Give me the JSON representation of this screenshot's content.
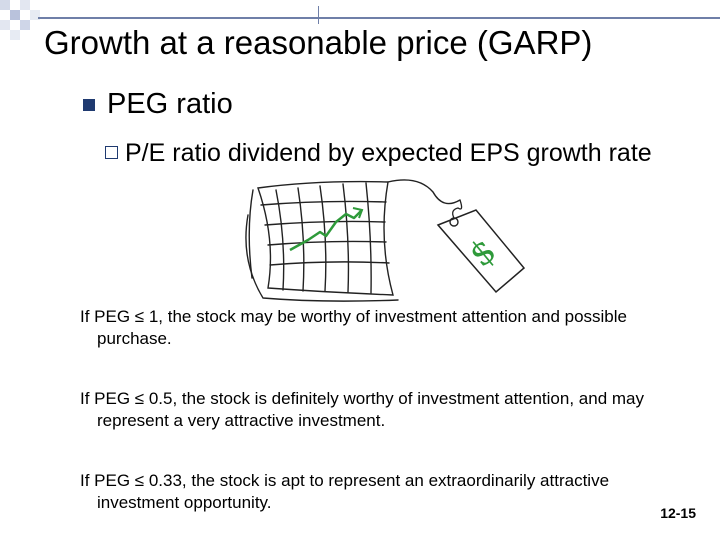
{
  "slide": {
    "title": "Growth at a reasonable price (GARP)",
    "bullet_level1": "PEG ratio",
    "bullet_level2": "P/E ratio dividend by expected EPS growth rate",
    "rules": [
      "If PEG ≤ 1, the stock may be worthy of investment attention and possible purchase.",
      "If PEG ≤ 0.5, the stock is definitely worthy of investment attention, and may represent a very attractive investment.",
      "If PEG ≤ 0.33, the stock is apt to represent an extraordinarily attractive investment opportunity."
    ],
    "slide_number": "12-15"
  },
  "clipart": {
    "icon": "stock-chart-with-price-tag-icon",
    "tag_symbol": "$"
  },
  "colors": {
    "accent_navy": "#1f3a70",
    "chart_line": "#2e9a3a",
    "tag_dollar": "#2e9a3a",
    "corner_squares": "#c9d0e6"
  }
}
